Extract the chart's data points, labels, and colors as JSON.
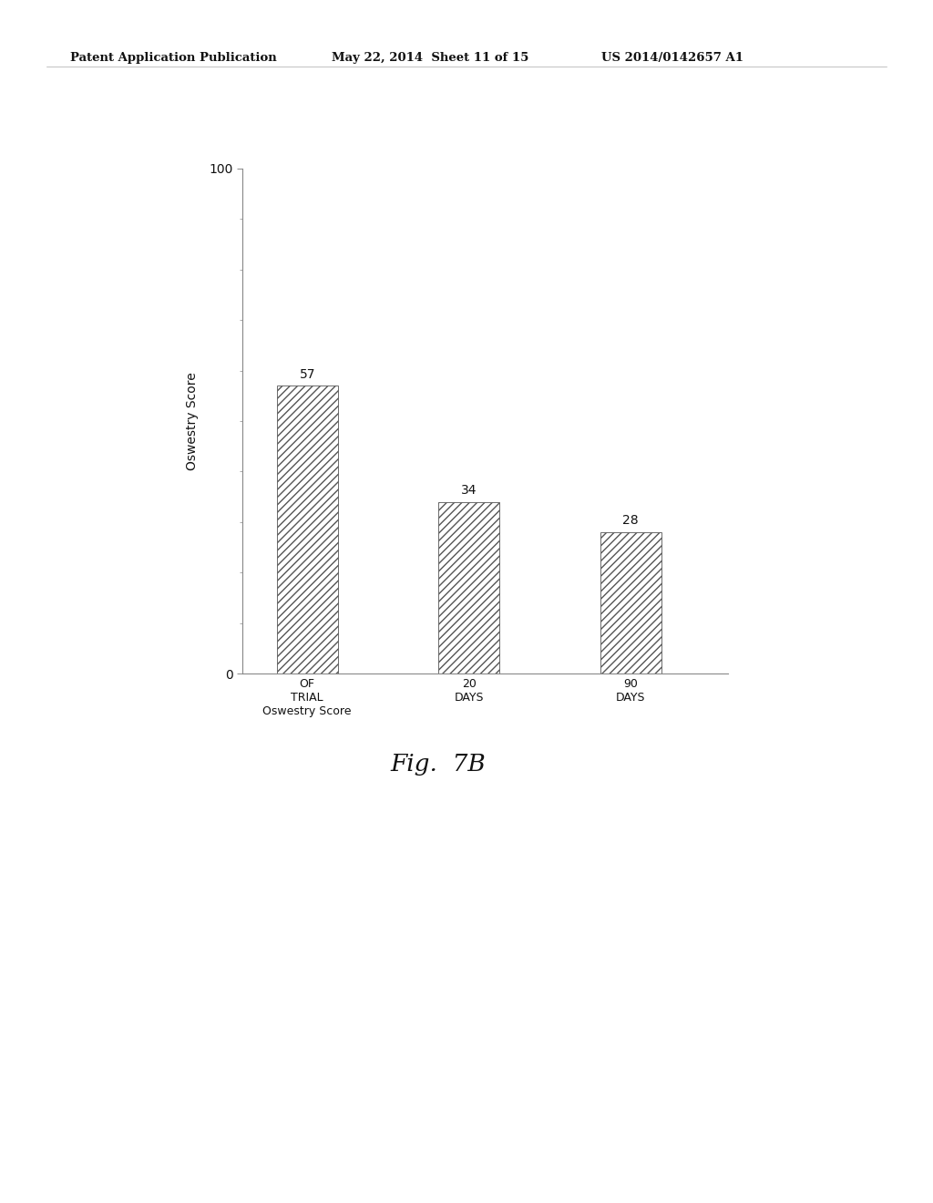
{
  "categories": [
    "OF\nTRIAL\nOswestry Score",
    "20\nDAYS",
    "90\nDAYS"
  ],
  "values": [
    57,
    34,
    28
  ],
  "bar_labels": [
    "57",
    "34",
    "28"
  ],
  "ylabel": "Oswestry Score",
  "ylim": [
    0,
    100
  ],
  "fig_caption": "Fig.  7B",
  "header_left": "Patent Application Publication",
  "header_mid": "May 22, 2014  Sheet 11 of 15",
  "header_right": "US 2014/0142657 A1",
  "background_color": "#ffffff",
  "bar_facecolor": "#ffffff",
  "bar_edgecolor": "#555555",
  "hatch_pattern": "////",
  "bar_width": 0.38,
  "bar_positions": [
    1,
    2,
    3
  ],
  "axis_color": "#888888",
  "ylabel_fontsize": 10,
  "tick_fontsize": 10,
  "xtick_fontsize": 9,
  "value_fontsize": 10,
  "caption_fontsize": 19,
  "header_fontsize": 9.5
}
